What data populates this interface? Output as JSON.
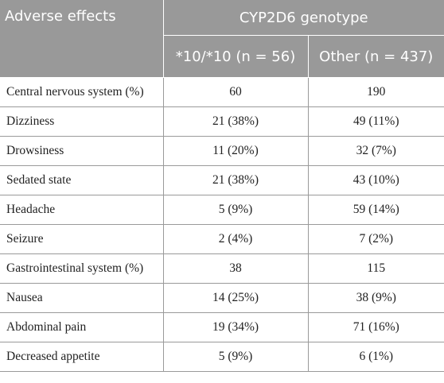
{
  "table": {
    "header": {
      "label": "Adverse effects",
      "group": "CYP2D6 genotype",
      "col1": "*10/*10 (n = 56)",
      "col2": "Other (n = 437)"
    },
    "rows": [
      {
        "label": "Central nervous system (%)",
        "a": "60",
        "b": "190"
      },
      {
        "label": "Dizziness",
        "a": "21 (38%)",
        "b": "49 (11%)"
      },
      {
        "label": "Drowsiness",
        "a": "11 (20%)",
        "b": "32 (7%)"
      },
      {
        "label": "Sedated state",
        "a": "21 (38%)",
        "b": "43 (10%)"
      },
      {
        "label": "Headache",
        "a": "5 (9%)",
        "b": "59 (14%)"
      },
      {
        "label": "Seizure",
        "a": "2 (4%)",
        "b": "7 (2%)"
      },
      {
        "label": "Gastrointestinal system (%)",
        "a": "38",
        "b": "115"
      },
      {
        "label": "Nausea",
        "a": "14 (25%)",
        "b": "38 (9%)"
      },
      {
        "label": "Abdominal pain",
        "a": "19 (34%)",
        "b": "71 (16%)"
      },
      {
        "label": "Decreased appetite",
        "a": "5 (9%)",
        "b": "6 (1%)"
      }
    ]
  }
}
